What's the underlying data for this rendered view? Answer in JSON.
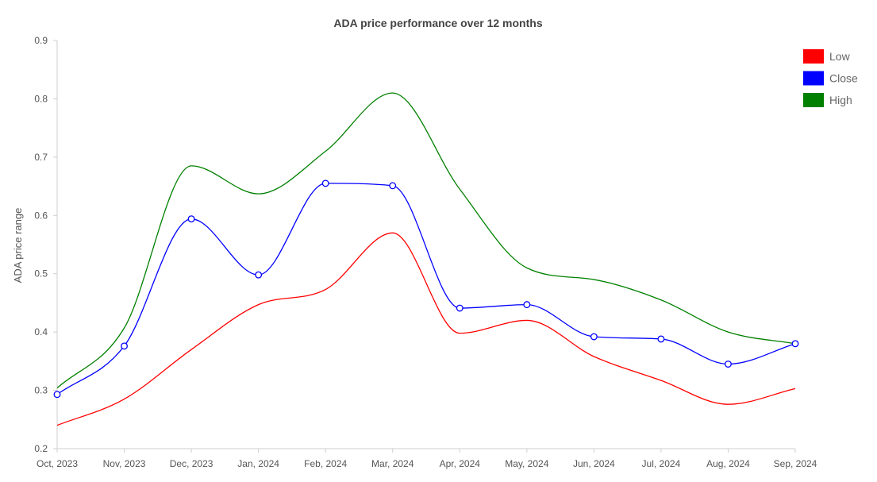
{
  "chart_data": {
    "type": "line",
    "title": "ADA price performance over 12 months",
    "ylabel": "ADA price range",
    "xlabel": "",
    "categories": [
      "Oct, 2023",
      "Nov, 2023",
      "Dec, 2023",
      "Jan, 2024",
      "Feb, 2024",
      "Mar, 2024",
      "Apr, 2024",
      "May, 2024",
      "Jun, 2024",
      "Jul, 2024",
      "Aug, 2024",
      "Sep, 2024"
    ],
    "yticks": [
      "0.2",
      "0.3",
      "0.4",
      "0.5",
      "0.6",
      "0.7",
      "0.8",
      "0.9"
    ],
    "ylim": [
      0.2,
      0.9
    ],
    "grid": false,
    "legend_position": "top-right",
    "series": [
      {
        "name": "Low",
        "color": "#ff0000",
        "markers": false,
        "values": [
          0.24,
          0.285,
          0.37,
          0.447,
          0.473,
          0.57,
          0.398,
          0.42,
          0.358,
          0.317,
          0.276,
          0.303
        ]
      },
      {
        "name": "Close",
        "color": "#0000ff",
        "markers": true,
        "values": [
          0.293,
          0.376,
          0.594,
          0.498,
          0.655,
          0.651,
          0.441,
          0.447,
          0.392,
          0.388,
          0.345,
          0.38
        ]
      },
      {
        "name": "High",
        "color": "#008000",
        "markers": false,
        "values": [
          0.304,
          0.407,
          0.685,
          0.637,
          0.71,
          0.81,
          0.645,
          0.51,
          0.49,
          0.455,
          0.4,
          0.38
        ]
      }
    ]
  }
}
